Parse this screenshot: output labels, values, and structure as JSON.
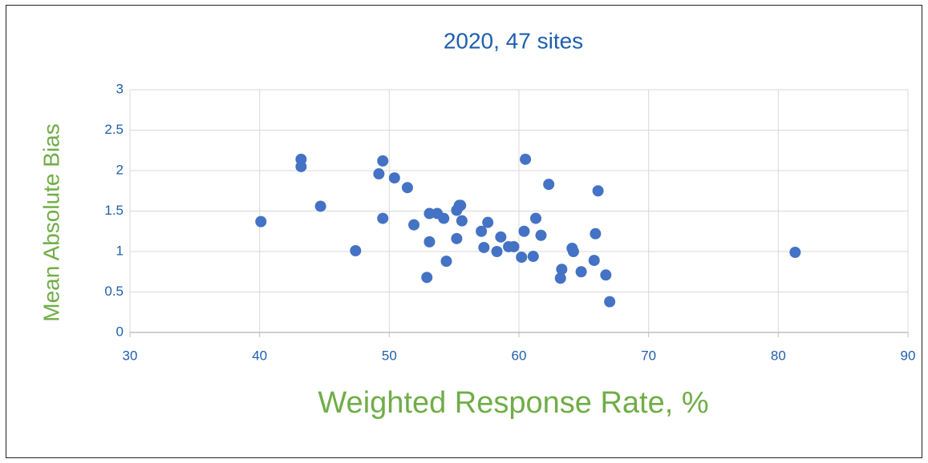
{
  "chart_data": {
    "type": "scatter",
    "title": "2020, 47 sites",
    "x_label": "Weighted Response Rate, %",
    "y_label": "Mean Absolute Bias",
    "color": "#4472c4",
    "grid": true,
    "xlim": [
      30,
      90
    ],
    "xticks": [
      30,
      40,
      50,
      60,
      70,
      80,
      90
    ],
    "ylim": [
      0,
      3
    ],
    "yticks": [
      0,
      0.5,
      1,
      1.5,
      2,
      2.5,
      3
    ],
    "x": [
      40.1,
      43.2,
      43.2,
      44.7,
      47.4,
      49.2,
      49.5,
      49.5,
      50.4,
      51.4,
      51.9,
      53.1,
      53.1,
      52.9,
      53.7,
      54.2,
      54.4,
      55.2,
      55.2,
      55.4,
      55.5,
      55.6,
      57.1,
      57.3,
      57.6,
      58.3,
      58.6,
      59.2,
      59.6,
      60.2,
      60.4,
      60.5,
      61.1,
      61.3,
      61.7,
      62.3,
      63.3,
      63.2,
      64.1,
      64.2,
      64.8,
      65.8,
      65.9,
      66.1,
      66.7,
      67.0,
      81.3
    ],
    "y": [
      1.37,
      2.14,
      2.05,
      1.56,
      1.01,
      1.96,
      2.12,
      1.41,
      1.91,
      1.79,
      1.33,
      1.47,
      1.12,
      0.68,
      1.47,
      1.41,
      0.88,
      1.51,
      1.16,
      1.57,
      1.57,
      1.38,
      1.25,
      1.05,
      1.36,
      1.0,
      1.18,
      1.06,
      1.06,
      0.93,
      1.25,
      2.14,
      0.94,
      1.41,
      1.2,
      1.83,
      0.78,
      0.67,
      1.04,
      1.0,
      0.75,
      0.89,
      1.22,
      1.75,
      0.71,
      0.38,
      0.99
    ]
  }
}
